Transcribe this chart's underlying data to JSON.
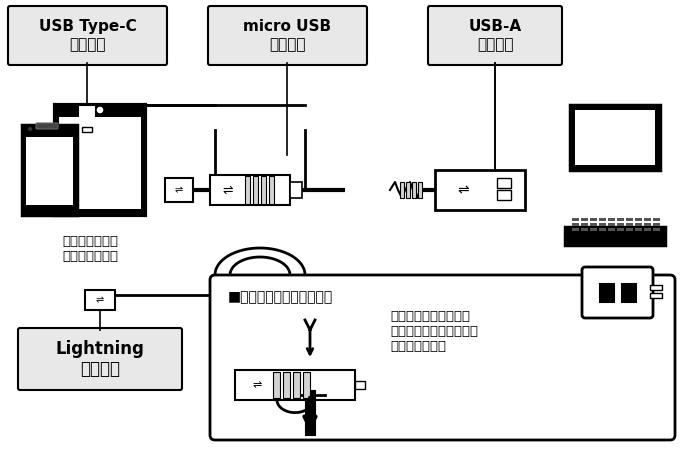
{
  "bg_color": "#ffffff",
  "border_color": "#000000",
  "box_fill": "#e8e8e8",
  "labels": {
    "usb_c": "USB Type-C\nコネクタ",
    "micro_usb": "micro USB\nコネクタ",
    "usb_a": "USB-A\nコネクタ",
    "lightning": "Lightning\nコネクタ",
    "smartphone": "スマートフォン\nタブレット端末",
    "pc": "パソコン\nUSB充電器",
    "adapter_title": "■変換アダプタを使う場合",
    "adapter_text": "コネクタの向きを確認\nして、根本までしっかり\n差し込みます。"
  }
}
